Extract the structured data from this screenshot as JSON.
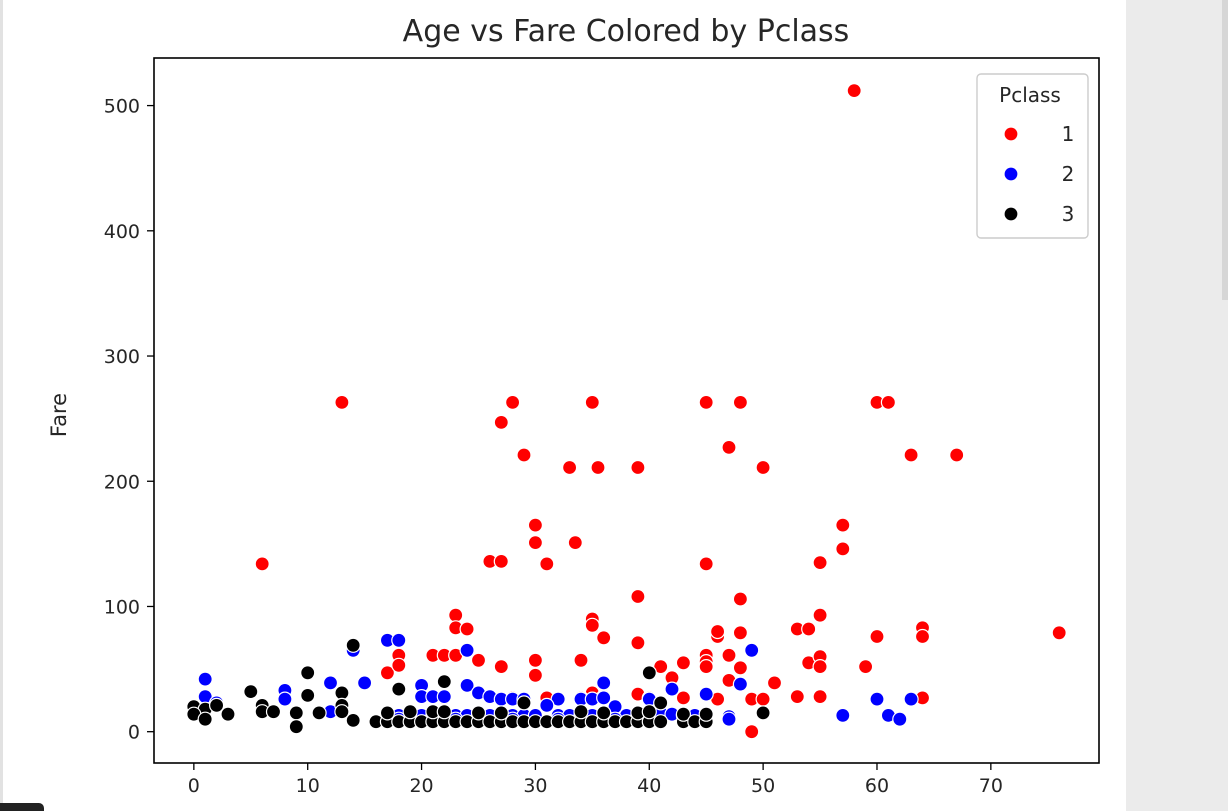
{
  "chart_data": {
    "type": "scatter",
    "title": "Age vs Fare Colored by Pclass",
    "xlabel": "",
    "ylabel": "Fare",
    "xlim": [
      -3.5,
      79.5
    ],
    "ylim": [
      -25,
      538
    ],
    "xticks": [
      0,
      10,
      20,
      30,
      40,
      50,
      60,
      70
    ],
    "yticks": [
      0,
      100,
      200,
      300,
      400,
      500
    ],
    "grid": false,
    "legend": {
      "title": "Pclass",
      "placement": "top-right",
      "entries": [
        {
          "label": "1",
          "color": "#ff0000"
        },
        {
          "label": "2",
          "color": "#0000ff"
        },
        {
          "label": "3",
          "color": "#000000"
        }
      ]
    },
    "series": [
      {
        "name": "1",
        "color": "#ff0000",
        "points": [
          [
            58,
            512
          ],
          [
            13,
            263
          ],
          [
            28,
            263
          ],
          [
            35,
            263
          ],
          [
            45,
            263
          ],
          [
            48,
            263
          ],
          [
            60,
            263
          ],
          [
            61,
            263
          ],
          [
            27,
            247
          ],
          [
            47,
            227
          ],
          [
            29,
            221
          ],
          [
            63,
            221
          ],
          [
            67,
            221
          ],
          [
            33,
            211
          ],
          [
            35.5,
            211
          ],
          [
            39,
            211
          ],
          [
            50,
            211
          ],
          [
            30,
            165
          ],
          [
            57,
            165
          ],
          [
            30,
            151
          ],
          [
            33.5,
            151
          ],
          [
            57,
            146
          ],
          [
            6,
            134
          ],
          [
            26,
            136
          ],
          [
            27,
            136
          ],
          [
            31,
            134
          ],
          [
            45,
            134
          ],
          [
            55,
            135
          ],
          [
            39,
            108
          ],
          [
            48,
            106
          ],
          [
            23,
            93
          ],
          [
            35,
            90
          ],
          [
            35,
            85
          ],
          [
            55,
            93
          ],
          [
            23,
            83
          ],
          [
            24,
            82
          ],
          [
            36,
            75
          ],
          [
            46,
            76
          ],
          [
            46,
            80
          ],
          [
            48,
            79
          ],
          [
            53,
            82
          ],
          [
            54,
            82
          ],
          [
            60,
            76
          ],
          [
            64,
            83
          ],
          [
            64,
            76
          ],
          [
            76,
            79
          ],
          [
            39,
            71
          ],
          [
            47,
            61
          ],
          [
            18,
            61
          ],
          [
            21,
            61
          ],
          [
            22,
            61
          ],
          [
            23,
            61
          ],
          [
            25,
            57
          ],
          [
            30,
            57
          ],
          [
            34,
            57
          ],
          [
            43,
            55
          ],
          [
            45,
            61
          ],
          [
            45,
            56
          ],
          [
            45,
            52
          ],
          [
            48,
            51
          ],
          [
            54,
            55
          ],
          [
            55,
            60
          ],
          [
            55,
            52
          ],
          [
            59,
            52
          ],
          [
            41,
            52
          ],
          [
            17,
            47
          ],
          [
            18,
            53
          ],
          [
            27,
            52
          ],
          [
            30,
            45
          ],
          [
            42,
            43
          ],
          [
            47,
            41
          ],
          [
            51,
            39
          ],
          [
            39,
            30
          ],
          [
            35,
            31
          ],
          [
            34,
            27
          ],
          [
            31,
            27
          ],
          [
            40,
            27
          ],
          [
            43,
            27
          ],
          [
            46,
            26
          ],
          [
            49,
            26
          ],
          [
            50,
            26
          ],
          [
            53,
            28
          ],
          [
            55,
            28
          ],
          [
            64,
            27
          ],
          [
            36,
            28
          ],
          [
            28,
            27
          ],
          [
            49,
            0
          ],
          [
            22,
            27
          ],
          [
            27,
            25
          ]
        ]
      },
      {
        "name": "2",
        "color": "#0000ff",
        "points": [
          [
            17,
            73
          ],
          [
            18,
            73
          ],
          [
            14,
            65
          ],
          [
            24,
            65
          ],
          [
            49,
            65
          ],
          [
            1,
            42
          ],
          [
            12,
            39
          ],
          [
            15,
            39
          ],
          [
            20,
            37
          ],
          [
            24,
            37
          ],
          [
            36,
            39
          ],
          [
            48,
            38
          ],
          [
            42,
            34
          ],
          [
            1,
            28
          ],
          [
            8,
            33
          ],
          [
            8,
            26
          ],
          [
            2,
            23
          ],
          [
            20,
            28
          ],
          [
            21,
            28
          ],
          [
            22,
            28
          ],
          [
            25,
            31
          ],
          [
            26,
            28
          ],
          [
            27,
            26
          ],
          [
            28,
            26
          ],
          [
            29,
            26
          ],
          [
            32,
            26
          ],
          [
            34,
            26
          ],
          [
            35,
            26
          ],
          [
            36,
            27
          ],
          [
            40,
            26
          ],
          [
            45,
            30
          ],
          [
            60,
            26
          ],
          [
            63,
            26
          ],
          [
            12,
            16
          ],
          [
            18,
            13
          ],
          [
            19,
            13
          ],
          [
            20,
            13
          ],
          [
            21,
            13
          ],
          [
            22,
            13
          ],
          [
            23,
            13
          ],
          [
            24,
            13
          ],
          [
            25,
            13
          ],
          [
            26,
            13
          ],
          [
            27,
            13
          ],
          [
            28,
            13
          ],
          [
            29,
            13
          ],
          [
            30,
            13
          ],
          [
            31,
            21
          ],
          [
            32,
            13
          ],
          [
            33,
            13
          ],
          [
            34,
            13
          ],
          [
            35,
            13
          ],
          [
            36,
            13
          ],
          [
            37,
            20
          ],
          [
            38,
            13
          ],
          [
            39,
            13
          ],
          [
            40,
            13
          ],
          [
            41,
            15
          ],
          [
            42,
            14
          ],
          [
            43,
            13
          ],
          [
            44,
            13
          ],
          [
            47,
            12
          ],
          [
            57,
            13
          ],
          [
            61,
            13
          ],
          [
            62,
            10
          ],
          [
            18,
            10
          ],
          [
            19,
            10
          ],
          [
            23,
            10
          ],
          [
            28,
            10
          ],
          [
            32,
            10
          ],
          [
            37,
            10
          ],
          [
            47,
            10
          ]
        ]
      },
      {
        "name": "3",
        "color": "#000000",
        "points": [
          [
            14,
            69
          ],
          [
            10,
            47
          ],
          [
            40,
            47
          ],
          [
            22,
            40
          ],
          [
            5,
            32
          ],
          [
            13,
            31
          ],
          [
            10,
            29
          ],
          [
            18,
            34
          ],
          [
            0,
            20
          ],
          [
            1,
            18
          ],
          [
            2,
            21
          ],
          [
            3,
            14
          ],
          [
            0,
            14
          ],
          [
            1,
            10
          ],
          [
            6,
            21
          ],
          [
            6,
            16
          ],
          [
            7,
            16
          ],
          [
            9,
            15
          ],
          [
            9,
            4
          ],
          [
            11,
            15
          ],
          [
            13,
            21
          ],
          [
            13,
            16
          ],
          [
            14,
            9
          ],
          [
            16,
            8
          ],
          [
            17,
            8
          ],
          [
            17,
            15
          ],
          [
            18,
            8
          ],
          [
            19,
            8
          ],
          [
            19,
            16
          ],
          [
            20,
            8
          ],
          [
            21,
            8
          ],
          [
            21,
            16
          ],
          [
            22,
            8
          ],
          [
            22,
            16
          ],
          [
            23,
            8
          ],
          [
            24,
            8
          ],
          [
            25,
            8
          ],
          [
            25,
            15
          ],
          [
            26,
            8
          ],
          [
            27,
            8
          ],
          [
            27,
            15
          ],
          [
            28,
            8
          ],
          [
            29,
            8
          ],
          [
            29,
            23
          ],
          [
            30,
            8
          ],
          [
            31,
            8
          ],
          [
            32,
            8
          ],
          [
            33,
            8
          ],
          [
            34,
            8
          ],
          [
            34,
            16
          ],
          [
            35,
            8
          ],
          [
            36,
            8
          ],
          [
            36,
            15
          ],
          [
            37,
            8
          ],
          [
            38,
            8
          ],
          [
            39,
            8
          ],
          [
            39,
            15
          ],
          [
            40,
            8
          ],
          [
            40,
            16
          ],
          [
            41,
            8
          ],
          [
            41,
            23
          ],
          [
            43,
            8
          ],
          [
            43,
            14
          ],
          [
            44,
            8
          ],
          [
            45,
            8
          ],
          [
            45,
            14
          ],
          [
            50,
            15
          ]
        ]
      }
    ]
  }
}
